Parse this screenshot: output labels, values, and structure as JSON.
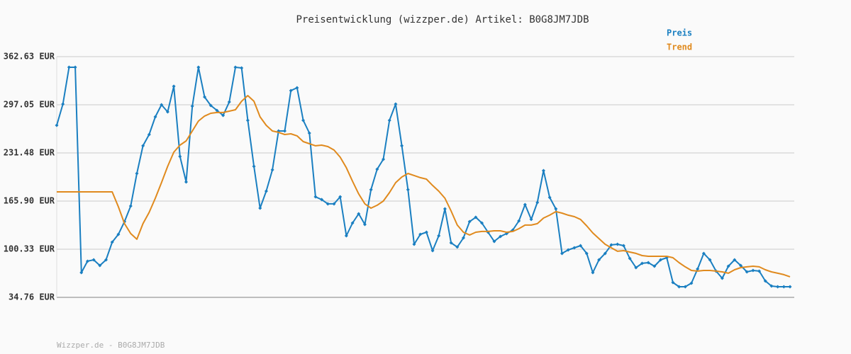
{
  "chart_data": {
    "type": "line",
    "title": "Preisentwicklung (wizzper.de) Artikel: B0G8JM7JDB",
    "footer": "Wizzper.de - B0G8JM7JDB",
    "categories": [
      null,
      null,
      null,
      null,
      null,
      null,
      null,
      null,
      null,
      null,
      null,
      null,
      null,
      null,
      null,
      null,
      null,
      null,
      null,
      null,
      null,
      null,
      null,
      null,
      null,
      null,
      null,
      null,
      null,
      null,
      null,
      null,
      null,
      null,
      null,
      null,
      null,
      null,
      null,
      null,
      null,
      null,
      null,
      null,
      null,
      null,
      null,
      null,
      null,
      null,
      null,
      null,
      null,
      null,
      null,
      null,
      null,
      null,
      null,
      null,
      null,
      null,
      null,
      null,
      null,
      null,
      null,
      null,
      null,
      null,
      null,
      null,
      null,
      null,
      null,
      null,
      null,
      null,
      null,
      null,
      null,
      null,
      null,
      null,
      null,
      null,
      null,
      null,
      null,
      null,
      null,
      null,
      null,
      null,
      null,
      null,
      null,
      null,
      null,
      null,
      null,
      null,
      null,
      null,
      null,
      null,
      null,
      null,
      null,
      null,
      null,
      null,
      null,
      null,
      null,
      null,
      null,
      null,
      null,
      null
    ],
    "series": [
      {
        "name": "Preis",
        "color": "#1a7fc1",
        "markers": true,
        "values": [
          269.1,
          298.0,
          348.2,
          348.2,
          68.5,
          84.0,
          85.9,
          78.2,
          85.9,
          110.0,
          120.6,
          138.0,
          159.2,
          203.5,
          241.2,
          256.6,
          280.7,
          297.1,
          287.4,
          322.2,
          226.7,
          192.0,
          295.2,
          348.2,
          307.7,
          296.1,
          289.4,
          282.6,
          300.9,
          348.2,
          347.2,
          275.9,
          213.2,
          156.3,
          179.4,
          208.4,
          261.4,
          261.4,
          316.4,
          320.2,
          275.9,
          258.5,
          171.7,
          167.9,
          162.1,
          162.1,
          171.7,
          118.7,
          136.0,
          148.6,
          134.1,
          181.4,
          209.3,
          222.8,
          275.9,
          298.0,
          241.2,
          181.4,
          107.1,
          120.6,
          123.5,
          98.4,
          118.7,
          155.3,
          109.0,
          103.3,
          115.8,
          138.0,
          143.8,
          136.0,
          123.5,
          111.0,
          117.7,
          121.6,
          126.4,
          138.9,
          161.1,
          140.9,
          164.0,
          207.4,
          170.8,
          155.3,
          94.6,
          99.4,
          102.3,
          105.2,
          94.6,
          68.5,
          85.9,
          94.6,
          106.2,
          107.1,
          105.2,
          87.8,
          75.3,
          81.1,
          82.0,
          77.2,
          85.9,
          88.8,
          55.0,
          49.2,
          49.2,
          54.1,
          73.4,
          94.6,
          85.9,
          70.5,
          60.8,
          77.2,
          85.9,
          78.2,
          69.5,
          71.4,
          70.5,
          57.0,
          50.2,
          49.2,
          49.2,
          49.2
        ]
      },
      {
        "name": "Trend",
        "color": "#e08a1e",
        "markers": false,
        "values": [
          178.4,
          178.4,
          178.4,
          178.4,
          178.4,
          178.4,
          178.4,
          178.4,
          178.4,
          178.4,
          158.2,
          135.1,
          121.6,
          113.9,
          135.1,
          150.5,
          169.8,
          191.0,
          213.2,
          232.5,
          242.1,
          247.9,
          261.4,
          274.9,
          281.7,
          285.5,
          286.5,
          286.5,
          288.4,
          290.3,
          301.9,
          309.6,
          301.9,
          280.7,
          269.1,
          261.4,
          259.5,
          256.6,
          257.5,
          254.7,
          246.9,
          244.0,
          241.2,
          242.1,
          240.2,
          235.4,
          225.7,
          211.3,
          192.9,
          175.6,
          162.1,
          156.3,
          160.2,
          165.9,
          177.5,
          191.0,
          198.7,
          203.5,
          200.7,
          197.8,
          195.8,
          187.2,
          179.4,
          169.8,
          152.4,
          133.2,
          123.5,
          119.7,
          123.5,
          124.5,
          124.5,
          125.4,
          125.4,
          123.5,
          124.5,
          128.3,
          133.2,
          133.2,
          135.1,
          142.8,
          146.7,
          151.5,
          149.5,
          146.7,
          144.7,
          140.9,
          132.2,
          122.5,
          114.8,
          107.1,
          102.3,
          97.5,
          98.4,
          96.5,
          94.6,
          91.7,
          90.7,
          90.7,
          90.7,
          90.7,
          88.8,
          82.0,
          76.3,
          71.4,
          70.5,
          71.4,
          71.4,
          70.5,
          69.5,
          67.6,
          72.4,
          75.3,
          76.3,
          77.2,
          76.3,
          72.4,
          69.5,
          67.6,
          65.7,
          62.8
        ]
      }
    ],
    "ylim": [
      34.76,
      362.63
    ],
    "yticks": [
      {
        "value": 34.76,
        "label": "34.76 EUR"
      },
      {
        "value": 100.33,
        "label": "100.33 EUR"
      },
      {
        "value": 165.9,
        "label": "165.90 EUR"
      },
      {
        "value": 231.48,
        "label": "231.48 EUR"
      },
      {
        "value": 297.05,
        "label": "297.05 EUR"
      },
      {
        "value": 362.63,
        "label": "362.63 EUR"
      }
    ],
    "grid": true
  }
}
